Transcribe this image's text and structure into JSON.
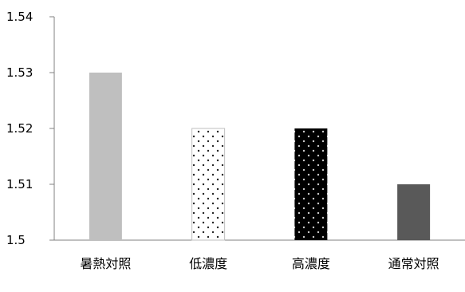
{
  "chart_data": {
    "type": "bar",
    "title": "",
    "xlabel": "",
    "ylabel": "",
    "categories": [
      "暑熱対照",
      "低濃度",
      "高濃度",
      "通常対照"
    ],
    "values": [
      1.53,
      1.52,
      1.52,
      1.51
    ],
    "ylim": [
      1.5,
      1.54
    ],
    "yticks": [
      "1.5",
      "1.51",
      "1.52",
      "1.53",
      "1.54"
    ],
    "grid": false,
    "legend": "none",
    "bar_styles": [
      {
        "fill": "#bfbfbf",
        "pattern": "solid"
      },
      {
        "fill": "#ffffff",
        "pattern": "dots-dark",
        "stroke": "#bfbfbf"
      },
      {
        "fill": "#000000",
        "pattern": "dots-light"
      },
      {
        "fill": "#595959",
        "pattern": "solid"
      }
    ]
  }
}
